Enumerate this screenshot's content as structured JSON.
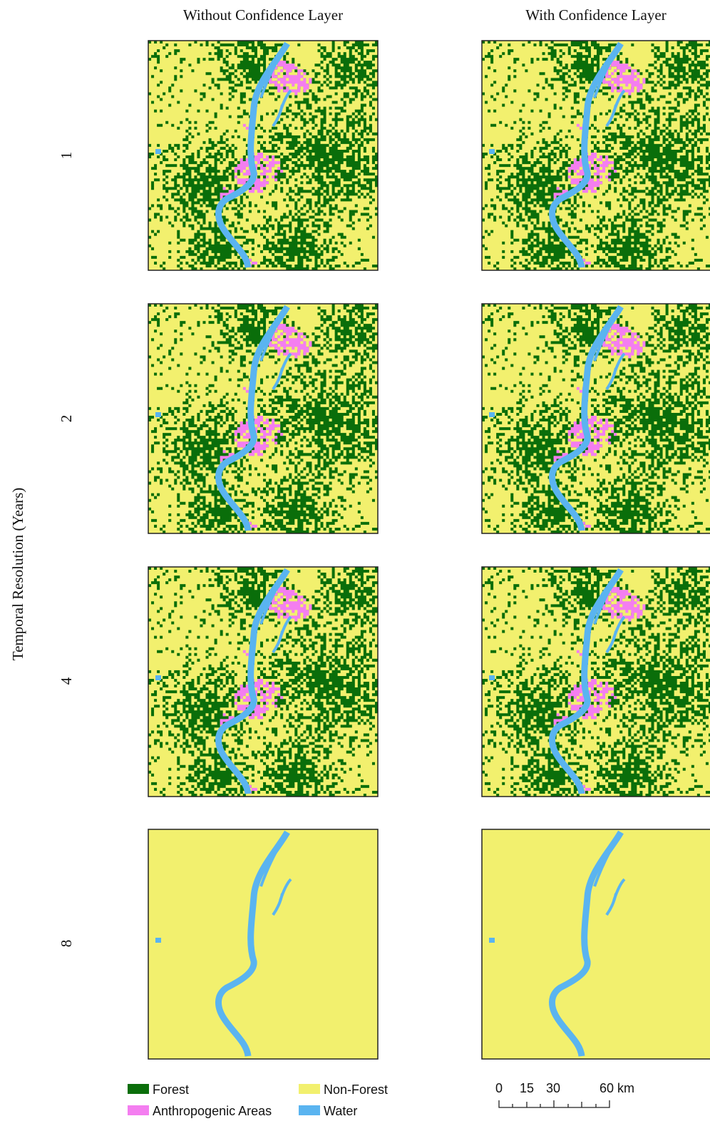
{
  "column_titles": [
    "Without Confidence Layer",
    "With Confidence Layer"
  ],
  "y_axis_label": "Temporal Resolution (Years)",
  "row_labels": [
    "1",
    "2",
    "4",
    "8"
  ],
  "legend": [
    "Forest",
    "Anthropogenic Areas",
    "Non-Forest",
    "Water"
  ],
  "scale_bar": {
    "labels": [
      "0",
      "15",
      "30",
      "60 km"
    ]
  }
}
